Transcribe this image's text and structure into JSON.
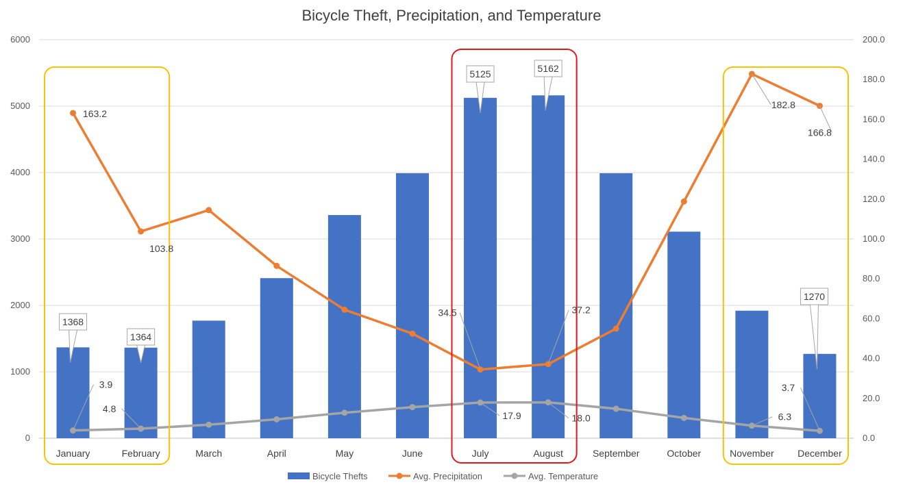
{
  "chart_data": {
    "type": "bar",
    "title": "Bicycle Theft, Precipitation, and Temperature",
    "categories": [
      "January",
      "February",
      "March",
      "April",
      "May",
      "June",
      "July",
      "August",
      "September",
      "October",
      "November",
      "December"
    ],
    "series": [
      {
        "name": "Bicycle Thefts",
        "type": "bar",
        "axis": "left",
        "color": "#4472C4",
        "values": [
          1368,
          1364,
          1770,
          2410,
          3360,
          3990,
          5125,
          5162,
          3990,
          3110,
          1920,
          1270
        ]
      },
      {
        "name": "Avg. Precipitation",
        "type": "line",
        "axis": "right",
        "color": "#ED7D31",
        "values": [
          163.2,
          103.8,
          114.5,
          86.5,
          64.5,
          52.5,
          34.5,
          37.2,
          55.0,
          118.8,
          182.8,
          166.8
        ]
      },
      {
        "name": "Avg. Temperature",
        "type": "line",
        "axis": "right",
        "color": "#A5A5A5",
        "values": [
          3.9,
          4.8,
          6.8,
          9.5,
          12.8,
          15.6,
          17.9,
          18.0,
          14.8,
          10.2,
          6.3,
          3.7
        ]
      }
    ],
    "left_axis": {
      "min": 0,
      "max": 6000,
      "ticks": [
        "0",
        "1000",
        "2000",
        "3000",
        "4000",
        "5000",
        "6000"
      ]
    },
    "right_axis": {
      "min": 0,
      "max": 200,
      "ticks": [
        "0.0",
        "20.0",
        "40.0",
        "60.0",
        "80.0",
        "100.0",
        "120.0",
        "140.0",
        "160.0",
        "180.0",
        "200.0"
      ]
    },
    "data_labels": [
      {
        "series": 0,
        "index": 0,
        "text": "1368"
      },
      {
        "series": 0,
        "index": 1,
        "text": "1364"
      },
      {
        "series": 0,
        "index": 6,
        "text": "5125"
      },
      {
        "series": 0,
        "index": 7,
        "text": "5162"
      },
      {
        "series": 0,
        "index": 11,
        "text": "1270"
      },
      {
        "series": 1,
        "index": 0,
        "text": "163.2"
      },
      {
        "series": 1,
        "index": 1,
        "text": "103.8"
      },
      {
        "series": 1,
        "index": 6,
        "text": "34.5"
      },
      {
        "series": 1,
        "index": 7,
        "text": "37.2"
      },
      {
        "series": 1,
        "index": 10,
        "text": "182.8"
      },
      {
        "series": 1,
        "index": 11,
        "text": "166.8"
      },
      {
        "series": 2,
        "index": 0,
        "text": "3.9"
      },
      {
        "series": 2,
        "index": 1,
        "text": "4.8"
      },
      {
        "series": 2,
        "index": 6,
        "text": "17.9"
      },
      {
        "series": 2,
        "index": 7,
        "text": "18.0"
      },
      {
        "series": 2,
        "index": 10,
        "text": "6.3"
      },
      {
        "series": 2,
        "index": 11,
        "text": "3.7"
      }
    ],
    "highlight_boxes": [
      {
        "from_index": 0,
        "to_index": 1,
        "color": "#FFC000"
      },
      {
        "from_index": 6,
        "to_index": 7,
        "color": "#E8161B"
      },
      {
        "from_index": 10,
        "to_index": 11,
        "color": "#FFC000"
      }
    ],
    "grid": true,
    "legend": "bottom"
  }
}
